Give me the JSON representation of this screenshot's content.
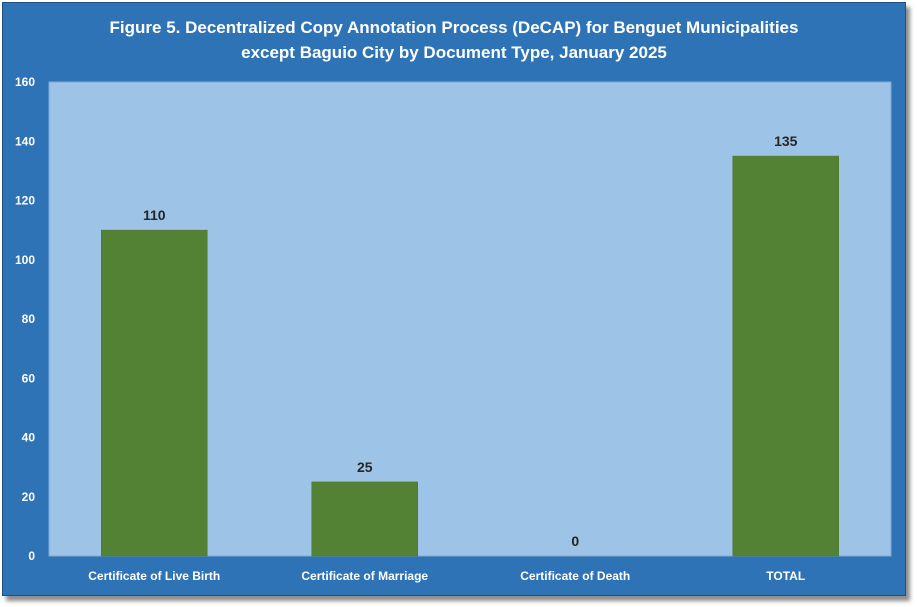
{
  "chart_data": {
    "type": "bar",
    "title": "Figure 5. Decentralized Copy Annotation Process (DeCAP) for Benguet Municipalities",
    "subtitle": "except Baguio City by Document Type, January 2025",
    "xlabel": "",
    "ylabel": "",
    "categories": [
      "Certificate of Live Birth",
      "Certificate of Marriage",
      "Certificate of Death",
      "TOTAL"
    ],
    "values": [
      110,
      25,
      0,
      135
    ],
    "data_labels": [
      "110",
      "25",
      "0",
      "135"
    ],
    "ylim": [
      0,
      160
    ],
    "yticks": [
      0,
      20,
      40,
      60,
      80,
      100,
      120,
      140,
      160
    ],
    "grid": false,
    "legend": "none"
  },
  "colors": {
    "frame_background": "#2f73b7",
    "plot_background": "#9dc3e6",
    "bar_fill": "#548235",
    "text": "#ffffff",
    "data_label_text": "#262626"
  }
}
